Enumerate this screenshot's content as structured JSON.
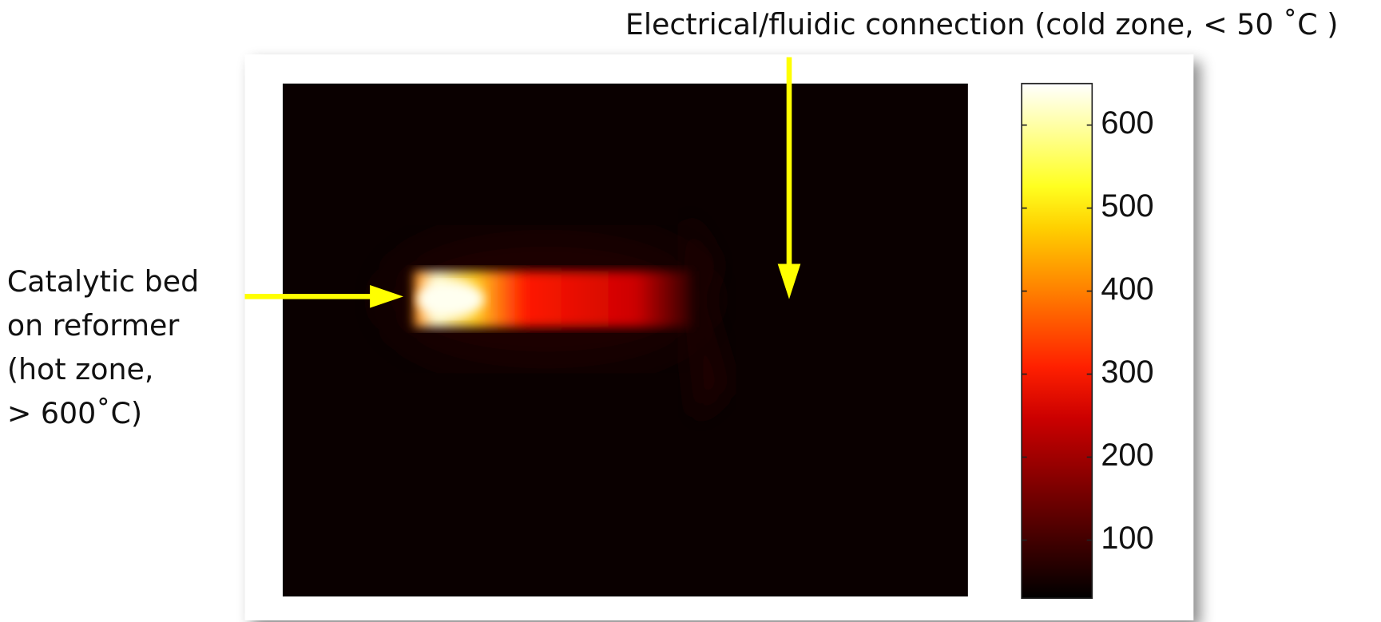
{
  "annotations": {
    "top": "Electrical/fluidic connection (cold zone, < 50 ˚C )",
    "left": [
      "Catalytic bed",
      "on reformer",
      "(hot zone,",
      "> 600˚C)"
    ]
  },
  "colorbar": {
    "range": [
      30,
      650
    ],
    "ticks": [
      100,
      200,
      300,
      400,
      500,
      600
    ]
  }
}
